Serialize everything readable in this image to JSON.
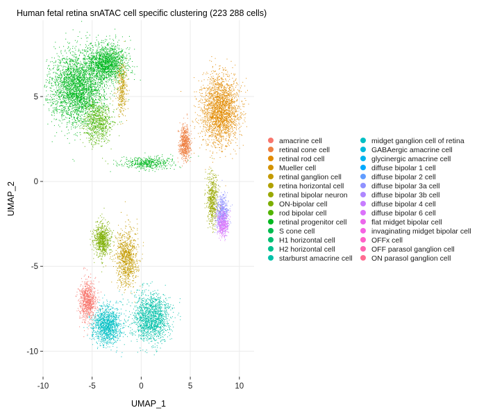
{
  "chart_data": {
    "type": "scatter",
    "title": "Human fetal retina snATAC cell specific clustering (223 288 cells)",
    "xlabel": "UMAP_1",
    "ylabel": "UMAP_2",
    "xlim": [
      -10,
      11.5
    ],
    "ylim": [
      -11.5,
      9.5
    ],
    "x_ticks": [
      -10,
      -5,
      0,
      5,
      10
    ],
    "y_ticks": [
      -10,
      -5,
      0,
      5
    ],
    "grid": true,
    "legend_position": "right",
    "point_size": 1,
    "legend": [
      {
        "label": "amacrine cell",
        "color": "#F8766D"
      },
      {
        "label": "retinal cone cell",
        "color": "#EE8043"
      },
      {
        "label": "retinal rod cell",
        "color": "#E28A00"
      },
      {
        "label": "Mueller cell",
        "color": "#D39200"
      },
      {
        "label": "retinal ganglion cell",
        "color": "#C49A00"
      },
      {
        "label": "retina horizontal cell",
        "color": "#B0A100"
      },
      {
        "label": "retinal bipolar neuron",
        "color": "#99A800"
      },
      {
        "label": "ON-bipolar cell",
        "color": "#7CAE00"
      },
      {
        "label": "rod bipolar cell",
        "color": "#53B400"
      },
      {
        "label": "retinal progenitor cell",
        "color": "#00B81F"
      },
      {
        "label": "S cone cell",
        "color": "#00BB4E"
      },
      {
        "label": "H1 horizontal cell",
        "color": "#00BE70"
      },
      {
        "label": "H2 horizontal cell",
        "color": "#00C08E"
      },
      {
        "label": "starburst amacrine cell",
        "color": "#00C0A8"
      },
      {
        "label": "midget ganglion cell of retina",
        "color": "#00BFC4"
      },
      {
        "label": "GABAergic amacrine cell",
        "color": "#00BADD"
      },
      {
        "label": "glycinergic amacrine cell",
        "color": "#00B4EF"
      },
      {
        "label": "diffuse bipolar 1 cell",
        "color": "#00A9FF"
      },
      {
        "label": "diffuse bipolar 2 cell",
        "color": "#619CFF"
      },
      {
        "label": "diffuse bipolar 3a cell",
        "color": "#8F91FF"
      },
      {
        "label": "diffuse bipolar 3b cell",
        "color": "#AE87FF"
      },
      {
        "label": "diffuse bipolar 4 cell",
        "color": "#C77CFF"
      },
      {
        "label": "diffuse bipolar 6 cell",
        "color": "#DB72FB"
      },
      {
        "label": "flat midget bipolar cell",
        "color": "#EB67EB"
      },
      {
        "label": "invaginating midget bipolar cell",
        "color": "#F563E3"
      },
      {
        "label": "OFFx cell",
        "color": "#FF61C9"
      },
      {
        "label": "OFF parasol ganglion cell",
        "color": "#FF64B0"
      },
      {
        "label": "ON parasol ganglion cell",
        "color": "#FF6C91"
      }
    ],
    "clusters": [
      {
        "cell_type": "retinal progenitor cell",
        "color": "#00B81F",
        "center": [
          -6.5,
          5.5
        ],
        "spread": [
          2.4,
          1.9
        ],
        "weight": 170
      },
      {
        "cell_type": "retinal progenitor cell",
        "color": "#00B81F",
        "center": [
          -3.5,
          7.0
        ],
        "spread": [
          1.8,
          1.0
        ],
        "weight": 90
      },
      {
        "cell_type": "rod bipolar cell",
        "color": "#53B400",
        "center": [
          -4.5,
          3.5
        ],
        "spread": [
          1.4,
          1.2
        ],
        "weight": 40
      },
      {
        "cell_type": "retinal ganglion cell",
        "color": "#C49A00",
        "center": [
          -2.0,
          5.5
        ],
        "spread": [
          0.5,
          1.4
        ],
        "weight": 20
      },
      {
        "cell_type": "retinal progenitor cell",
        "color": "#00B81F",
        "center": [
          0.5,
          1.1
        ],
        "spread": [
          2.5,
          0.35
        ],
        "weight": 25
      },
      {
        "cell_type": "retinal rod cell",
        "color": "#E28A00",
        "center": [
          8.0,
          4.2
        ],
        "spread": [
          1.7,
          1.8
        ],
        "weight": 130
      },
      {
        "cell_type": "retinal cone cell",
        "color": "#EE8043",
        "center": [
          4.4,
          2.3
        ],
        "spread": [
          0.5,
          0.9
        ],
        "weight": 35
      },
      {
        "cell_type": "diffuse bipolar 3a cell",
        "color": "#8F91FF",
        "center": [
          8.2,
          -1.8
        ],
        "spread": [
          0.6,
          0.9
        ],
        "weight": 30
      },
      {
        "cell_type": "retinal bipolar neuron",
        "color": "#99A800",
        "center": [
          7.2,
          -1.0
        ],
        "spread": [
          0.5,
          1.4
        ],
        "weight": 30
      },
      {
        "cell_type": "diffuse bipolar 6 cell",
        "color": "#DB72FB",
        "center": [
          8.3,
          -2.5
        ],
        "spread": [
          0.5,
          0.7
        ],
        "weight": 20
      },
      {
        "cell_type": "ON-bipolar cell",
        "color": "#7CAE00",
        "center": [
          -4.0,
          -3.4
        ],
        "spread": [
          0.8,
          0.9
        ],
        "weight": 40
      },
      {
        "cell_type": "retinal ganglion cell",
        "color": "#C49A00",
        "center": [
          -1.5,
          -4.5
        ],
        "spread": [
          1.0,
          1.5
        ],
        "weight": 55
      },
      {
        "cell_type": "starburst amacrine cell",
        "color": "#00C0A8",
        "center": [
          1.0,
          -8.0
        ],
        "spread": [
          1.8,
          1.3
        ],
        "weight": 90
      },
      {
        "cell_type": "midget ganglion cell of retina",
        "color": "#00BFC4",
        "center": [
          -3.5,
          -8.5
        ],
        "spread": [
          1.3,
          1.0
        ],
        "weight": 70
      },
      {
        "cell_type": "amacrine cell",
        "color": "#F8766D",
        "center": [
          -5.5,
          -7.0
        ],
        "spread": [
          0.8,
          1.1
        ],
        "weight": 45
      }
    ]
  }
}
